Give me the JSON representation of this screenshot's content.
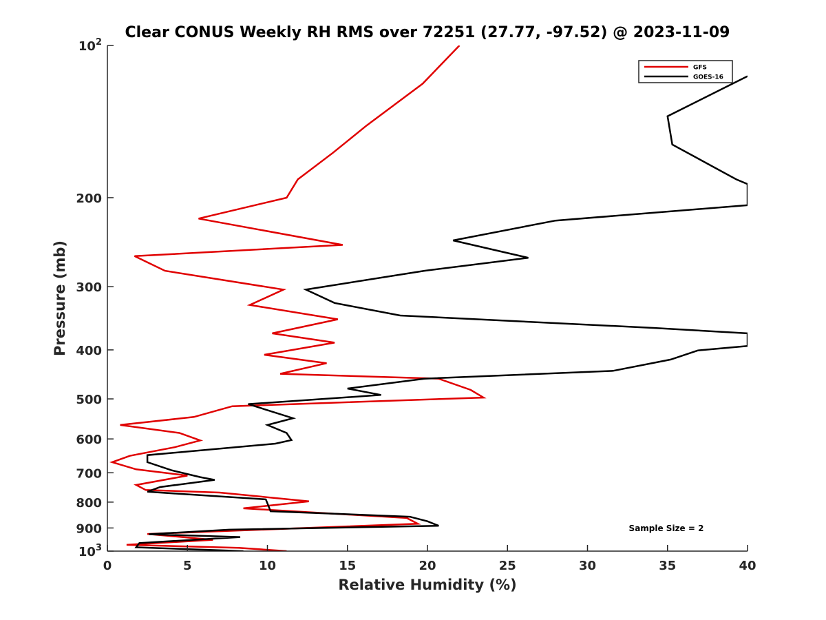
{
  "chart_data": {
    "type": "line",
    "title": "Clear CONUS Weekly RH RMS over 72251 (27.77, -97.52) @ 2023-11-09",
    "xlabel": "Relative Humidity (%)",
    "ylabel": "Pressure (mb)",
    "xlim": [
      0,
      40
    ],
    "ylim": [
      100,
      1000
    ],
    "y_scale": "log",
    "y_reversed": true,
    "x_ticks": [
      "0",
      "5",
      "10",
      "15",
      "20",
      "25",
      "30",
      "35",
      "40"
    ],
    "x_tick_values": [
      0,
      5,
      10,
      15,
      20,
      25,
      30,
      35,
      40
    ],
    "y_ticks": [
      {
        "value": 100,
        "base": "10",
        "exp": "2"
      },
      {
        "value": 200,
        "label": "200"
      },
      {
        "value": 300,
        "label": "300"
      },
      {
        "value": 400,
        "label": "400"
      },
      {
        "value": 500,
        "label": "500"
      },
      {
        "value": 600,
        "label": "600"
      },
      {
        "value": 700,
        "label": "700"
      },
      {
        "value": 800,
        "label": "800"
      },
      {
        "value": 900,
        "label": "900"
      },
      {
        "value": 1000,
        "base": "10",
        "exp": "3"
      }
    ],
    "legend_position": "top-right",
    "annotation": "Sample Size = 2",
    "series": [
      {
        "name": "GFS",
        "color": "#e00000",
        "points": [
          [
            22.0,
            100
          ],
          [
            19.7,
            119
          ],
          [
            16.2,
            144
          ],
          [
            14.1,
            163
          ],
          [
            11.9,
            184
          ],
          [
            11.2,
            200
          ],
          [
            5.7,
            220
          ],
          [
            14.7,
            248
          ],
          [
            1.7,
            261
          ],
          [
            3.6,
            279
          ],
          [
            11.0,
            304
          ],
          [
            8.9,
            326
          ],
          [
            14.4,
            348
          ],
          [
            10.3,
            371
          ],
          [
            14.2,
            387
          ],
          [
            9.8,
            409
          ],
          [
            13.7,
            425
          ],
          [
            10.8,
            446
          ],
          [
            20.7,
            456
          ],
          [
            22.7,
            480
          ],
          [
            23.5,
            497
          ],
          [
            7.8,
            517
          ],
          [
            5.4,
            543
          ],
          [
            0.8,
            563
          ],
          [
            4.5,
            584
          ],
          [
            5.8,
            604
          ],
          [
            4.2,
            623
          ],
          [
            1.4,
            648
          ],
          [
            0.3,
            667
          ],
          [
            1.8,
            689
          ],
          [
            5.0,
            709
          ],
          [
            1.8,
            740
          ],
          [
            2.4,
            757
          ],
          [
            7.0,
            766
          ],
          [
            12.6,
            797
          ],
          [
            8.5,
            823
          ],
          [
            18.7,
            860
          ],
          [
            19.4,
            883
          ],
          [
            2.5,
            925
          ],
          [
            6.6,
            950
          ],
          [
            1.2,
            972
          ],
          [
            8.2,
            985
          ],
          [
            11.2,
            1000
          ]
        ]
      },
      {
        "name": "GOES-16",
        "color": "#000000",
        "points": [
          [
            40.0,
            115
          ],
          [
            35.0,
            138
          ],
          [
            35.3,
            157
          ],
          [
            39.3,
            184
          ],
          [
            40.0,
            188
          ],
          [
            40.0,
            207
          ],
          [
            28.0,
            222
          ],
          [
            21.6,
            243
          ],
          [
            26.3,
            263
          ],
          [
            19.8,
            279
          ],
          [
            12.4,
            304
          ],
          [
            14.2,
            323
          ],
          [
            18.3,
            342
          ],
          [
            34.2,
            362
          ],
          [
            40.0,
            371
          ],
          [
            40.0,
            393
          ],
          [
            36.9,
            401
          ],
          [
            35.2,
            418
          ],
          [
            31.6,
            440
          ],
          [
            19.8,
            456
          ],
          [
            15.0,
            477
          ],
          [
            17.1,
            491
          ],
          [
            8.8,
            512
          ],
          [
            11.6,
            546
          ],
          [
            10.0,
            563
          ],
          [
            11.2,
            584
          ],
          [
            11.5,
            603
          ],
          [
            10.5,
            613
          ],
          [
            2.5,
            646
          ],
          [
            2.5,
            667
          ],
          [
            4.0,
            692
          ],
          [
            5.8,
            714
          ],
          [
            6.7,
            723
          ],
          [
            3.3,
            747
          ],
          [
            2.5,
            763
          ],
          [
            9.9,
            790
          ],
          [
            10.2,
            834
          ],
          [
            18.9,
            855
          ],
          [
            20.0,
            873
          ],
          [
            20.7,
            891
          ],
          [
            7.6,
            907
          ],
          [
            2.6,
            926
          ],
          [
            8.3,
            938
          ],
          [
            2.0,
            964
          ],
          [
            1.8,
            983
          ],
          [
            8.5,
            1000
          ]
        ]
      }
    ]
  }
}
